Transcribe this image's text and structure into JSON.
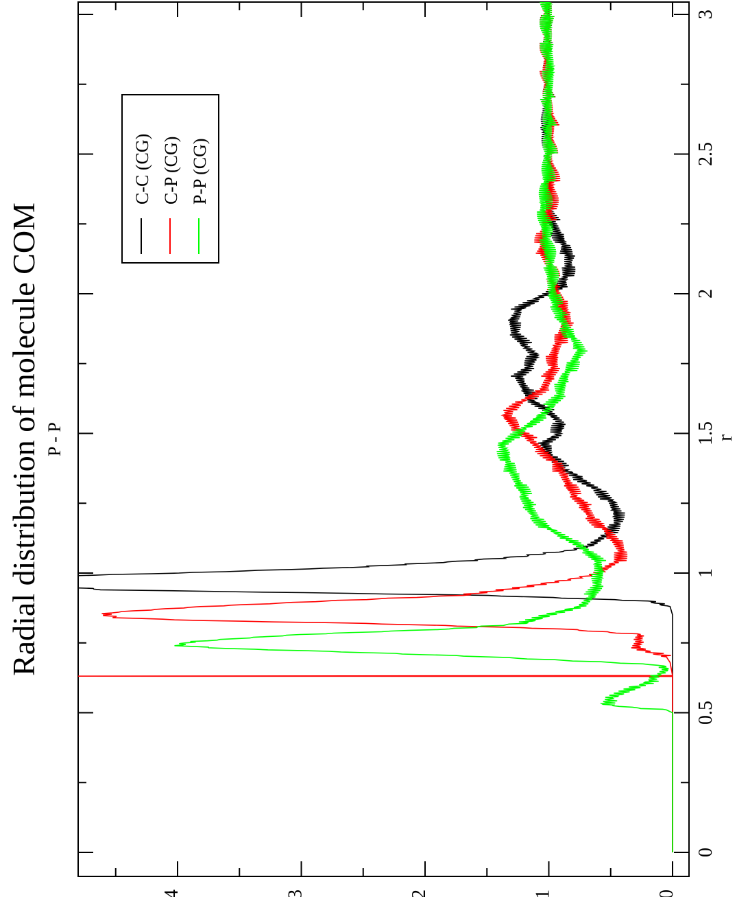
{
  "chart_data": {
    "type": "line",
    "title": "Radial distribution of molecule COM",
    "subtitle": "P - P",
    "xlabel": "r",
    "ylabel": "",
    "xlim": [
      0,
      3.05
    ],
    "ylim": [
      -0.05,
      4.8
    ],
    "xticks": [
      "0",
      "0.5",
      "1",
      "1.5",
      "2",
      "2.5",
      "3"
    ],
    "yticks": [
      "0",
      "1",
      "2",
      "3",
      "4"
    ],
    "orientation": "rotated 90 degrees clockwise",
    "legend_position": "top-left",
    "grid": false,
    "series": [
      {
        "name": "C-C (CG)",
        "color": "#000000",
        "points": [
          [
            0.0,
            0.0
          ],
          [
            0.85,
            0.0
          ],
          [
            0.88,
            0.02
          ],
          [
            0.9,
            0.2
          ],
          [
            0.92,
            1.5
          ],
          [
            0.93,
            3.0
          ],
          [
            0.94,
            4.6
          ],
          [
            0.95,
            4.9
          ],
          [
            0.97,
            4.9
          ],
          [
            0.99,
            4.9
          ],
          [
            1.0,
            4.0
          ],
          [
            1.02,
            2.6
          ],
          [
            1.04,
            1.8
          ],
          [
            1.06,
            1.2
          ],
          [
            1.08,
            0.85
          ],
          [
            1.1,
            0.65
          ],
          [
            1.14,
            0.52
          ],
          [
            1.18,
            0.45
          ],
          [
            1.22,
            0.46
          ],
          [
            1.26,
            0.5
          ],
          [
            1.3,
            0.6
          ],
          [
            1.34,
            0.75
          ],
          [
            1.38,
            0.9
          ],
          [
            1.42,
            1.0
          ],
          [
            1.46,
            1.05
          ],
          [
            1.5,
            0.92
          ],
          [
            1.54,
            0.9
          ],
          [
            1.58,
            1.0
          ],
          [
            1.62,
            1.15
          ],
          [
            1.66,
            1.2
          ],
          [
            1.7,
            1.25
          ],
          [
            1.74,
            1.15
          ],
          [
            1.78,
            1.1
          ],
          [
            1.82,
            1.2
          ],
          [
            1.86,
            1.28
          ],
          [
            1.9,
            1.3
          ],
          [
            1.94,
            1.25
          ],
          [
            1.98,
            1.1
          ],
          [
            2.02,
            0.9
          ],
          [
            2.06,
            0.87
          ],
          [
            2.1,
            0.85
          ],
          [
            2.14,
            0.85
          ],
          [
            2.18,
            0.88
          ],
          [
            2.22,
            0.92
          ],
          [
            2.26,
            0.97
          ],
          [
            2.3,
            1.0
          ],
          [
            2.4,
            1.0
          ],
          [
            2.5,
            1.0
          ],
          [
            2.6,
            1.02
          ],
          [
            2.7,
            1.0
          ],
          [
            2.8,
            1.0
          ],
          [
            2.9,
            1.0
          ],
          [
            3.0,
            1.0
          ],
          [
            3.05,
            1.0
          ]
        ]
      },
      {
        "name": "C-P (CG)",
        "color": "#ff0000",
        "points": [
          [
            0.0,
            0.0
          ],
          [
            0.62,
            0.0
          ],
          [
            0.63,
            0.0
          ],
          [
            0.631,
            4.9
          ],
          [
            0.633,
            0.0
          ],
          [
            0.68,
            0.02
          ],
          [
            0.7,
            0.05
          ],
          [
            0.72,
            0.2
          ],
          [
            0.74,
            0.3
          ],
          [
            0.76,
            0.27
          ],
          [
            0.78,
            0.25
          ],
          [
            0.8,
            0.9
          ],
          [
            0.82,
            2.5
          ],
          [
            0.83,
            3.8
          ],
          [
            0.84,
            4.5
          ],
          [
            0.85,
            4.6
          ],
          [
            0.86,
            4.5
          ],
          [
            0.88,
            3.8
          ],
          [
            0.9,
            2.8
          ],
          [
            0.92,
            1.7
          ],
          [
            0.95,
            1.2
          ],
          [
            0.98,
            0.8
          ],
          [
            1.0,
            0.6
          ],
          [
            1.04,
            0.45
          ],
          [
            1.08,
            0.42
          ],
          [
            1.12,
            0.48
          ],
          [
            1.16,
            0.55
          ],
          [
            1.2,
            0.65
          ],
          [
            1.24,
            0.7
          ],
          [
            1.28,
            0.8
          ],
          [
            1.32,
            0.85
          ],
          [
            1.36,
            0.9
          ],
          [
            1.4,
            0.95
          ],
          [
            1.44,
            1.05
          ],
          [
            1.48,
            1.15
          ],
          [
            1.52,
            1.28
          ],
          [
            1.56,
            1.35
          ],
          [
            1.58,
            1.33
          ],
          [
            1.62,
            1.2
          ],
          [
            1.66,
            1.05
          ],
          [
            1.7,
            1.0
          ],
          [
            1.74,
            0.95
          ],
          [
            1.78,
            0.95
          ],
          [
            1.82,
            0.92
          ],
          [
            1.86,
            0.9
          ],
          [
            1.9,
            0.87
          ],
          [
            1.94,
            0.87
          ],
          [
            1.98,
            0.9
          ],
          [
            2.02,
            0.95
          ],
          [
            2.06,
            0.98
          ],
          [
            2.1,
            1.0
          ],
          [
            2.14,
            1.05
          ],
          [
            2.18,
            1.05
          ],
          [
            2.22,
            1.03
          ],
          [
            2.26,
            1.0
          ],
          [
            2.3,
            1.0
          ],
          [
            2.4,
            0.98
          ],
          [
            2.5,
            1.0
          ],
          [
            2.6,
            0.98
          ],
          [
            2.7,
            1.0
          ],
          [
            2.8,
            1.0
          ],
          [
            2.9,
            1.0
          ],
          [
            3.0,
            1.0
          ],
          [
            3.05,
            1.0
          ]
        ]
      },
      {
        "name": "P-P (CG)",
        "color": "#00ff00",
        "points": [
          [
            0.0,
            0.0
          ],
          [
            0.5,
            0.0
          ],
          [
            0.51,
            0.05
          ],
          [
            0.52,
            0.35
          ],
          [
            0.53,
            0.55
          ],
          [
            0.55,
            0.5
          ],
          [
            0.58,
            0.35
          ],
          [
            0.6,
            0.25
          ],
          [
            0.62,
            0.15
          ],
          [
            0.64,
            0.1
          ],
          [
            0.66,
            0.05
          ],
          [
            0.67,
            0.1
          ],
          [
            0.68,
            0.5
          ],
          [
            0.7,
            1.5
          ],
          [
            0.72,
            2.8
          ],
          [
            0.73,
            3.6
          ],
          [
            0.74,
            4.0
          ],
          [
            0.75,
            3.95
          ],
          [
            0.76,
            3.7
          ],
          [
            0.78,
            3.0
          ],
          [
            0.8,
            1.8
          ],
          [
            0.82,
            1.2
          ],
          [
            0.85,
            1.0
          ],
          [
            0.88,
            0.75
          ],
          [
            0.92,
            0.65
          ],
          [
            0.96,
            0.6
          ],
          [
            1.0,
            0.58
          ],
          [
            1.04,
            0.6
          ],
          [
            1.08,
            0.7
          ],
          [
            1.12,
            0.85
          ],
          [
            1.16,
            1.0
          ],
          [
            1.2,
            1.1
          ],
          [
            1.24,
            1.15
          ],
          [
            1.28,
            1.2
          ],
          [
            1.32,
            1.25
          ],
          [
            1.36,
            1.3
          ],
          [
            1.4,
            1.33
          ],
          [
            1.44,
            1.35
          ],
          [
            1.46,
            1.38
          ],
          [
            1.48,
            1.32
          ],
          [
            1.52,
            1.2
          ],
          [
            1.56,
            1.08
          ],
          [
            1.6,
            0.98
          ],
          [
            1.64,
            0.9
          ],
          [
            1.68,
            0.88
          ],
          [
            1.72,
            0.85
          ],
          [
            1.76,
            0.8
          ],
          [
            1.8,
            0.75
          ],
          [
            1.84,
            0.8
          ],
          [
            1.88,
            0.85
          ],
          [
            1.92,
            0.9
          ],
          [
            1.96,
            0.95
          ],
          [
            2.0,
            0.98
          ],
          [
            2.1,
            1.0
          ],
          [
            2.2,
            1.03
          ],
          [
            2.3,
            1.05
          ],
          [
            2.4,
            1.02
          ],
          [
            2.5,
            1.0
          ],
          [
            2.6,
            1.0
          ],
          [
            2.7,
            1.0
          ],
          [
            2.8,
            0.98
          ],
          [
            2.9,
            1.0
          ],
          [
            3.0,
            1.0
          ],
          [
            3.05,
            1.0
          ]
        ]
      }
    ]
  }
}
